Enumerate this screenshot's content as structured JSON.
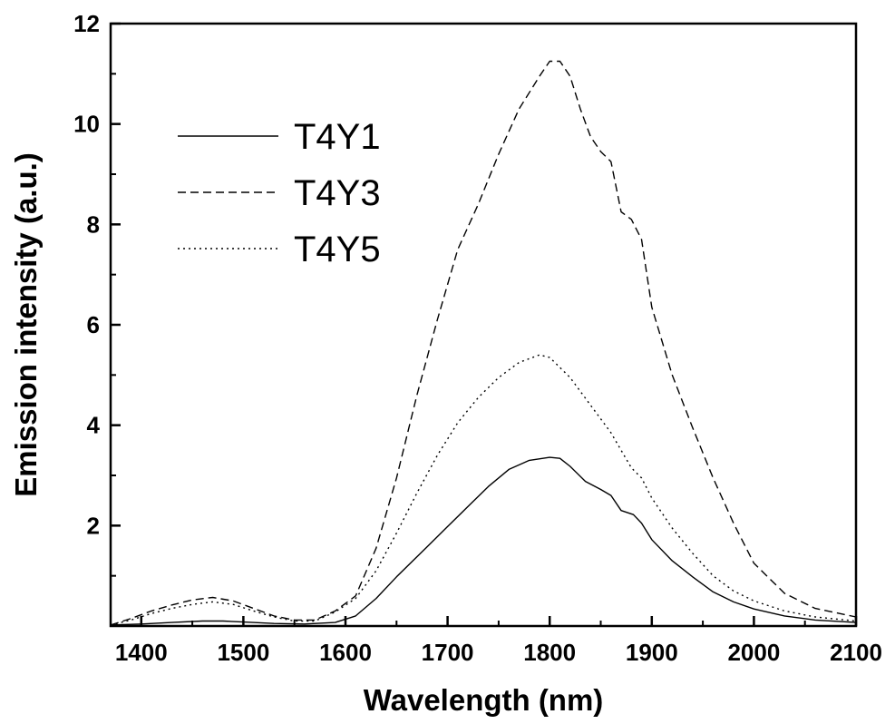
{
  "chart_data": {
    "type": "line",
    "xlabel": "Wavelength (nm)",
    "ylabel": "Emission intensity (a.u.)",
    "xlim": [
      1370,
      2100
    ],
    "ylim": [
      0,
      12
    ],
    "xticks": [
      1400,
      1500,
      1600,
      1700,
      1800,
      1900,
      2000,
      2100
    ],
    "yticks": [
      2,
      4,
      6,
      8,
      10,
      12
    ],
    "grid": false,
    "legend_position": "top-left",
    "series": [
      {
        "name": "T4Y1",
        "line_style": "solid",
        "points": [
          [
            1370,
            0.02
          ],
          [
            1400,
            0.04
          ],
          [
            1430,
            0.07
          ],
          [
            1460,
            0.1
          ],
          [
            1480,
            0.1
          ],
          [
            1500,
            0.08
          ],
          [
            1530,
            0.05
          ],
          [
            1560,
            0.04
          ],
          [
            1590,
            0.07
          ],
          [
            1610,
            0.2
          ],
          [
            1630,
            0.55
          ],
          [
            1650,
            0.98
          ],
          [
            1680,
            1.58
          ],
          [
            1700,
            1.98
          ],
          [
            1720,
            2.38
          ],
          [
            1740,
            2.78
          ],
          [
            1760,
            3.12
          ],
          [
            1780,
            3.3
          ],
          [
            1800,
            3.36
          ],
          [
            1810,
            3.34
          ],
          [
            1820,
            3.18
          ],
          [
            1835,
            2.88
          ],
          [
            1850,
            2.72
          ],
          [
            1860,
            2.6
          ],
          [
            1870,
            2.3
          ],
          [
            1882,
            2.22
          ],
          [
            1890,
            2.05
          ],
          [
            1900,
            1.72
          ],
          [
            1920,
            1.3
          ],
          [
            1940,
            0.98
          ],
          [
            1960,
            0.68
          ],
          [
            1980,
            0.48
          ],
          [
            2000,
            0.34
          ],
          [
            2030,
            0.2
          ],
          [
            2060,
            0.12
          ],
          [
            2100,
            0.07
          ]
        ]
      },
      {
        "name": "T4Y3",
        "line_style": "dashed",
        "points": [
          [
            1370,
            0.02
          ],
          [
            1390,
            0.15
          ],
          [
            1410,
            0.3
          ],
          [
            1430,
            0.42
          ],
          [
            1450,
            0.52
          ],
          [
            1470,
            0.57
          ],
          [
            1490,
            0.5
          ],
          [
            1510,
            0.35
          ],
          [
            1530,
            0.2
          ],
          [
            1550,
            0.12
          ],
          [
            1570,
            0.12
          ],
          [
            1590,
            0.3
          ],
          [
            1610,
            0.6
          ],
          [
            1630,
            1.55
          ],
          [
            1650,
            2.95
          ],
          [
            1670,
            4.6
          ],
          [
            1690,
            6.1
          ],
          [
            1710,
            7.5
          ],
          [
            1730,
            8.4
          ],
          [
            1750,
            9.4
          ],
          [
            1770,
            10.3
          ],
          [
            1790,
            10.95
          ],
          [
            1800,
            11.25
          ],
          [
            1810,
            11.25
          ],
          [
            1820,
            10.95
          ],
          [
            1830,
            10.3
          ],
          [
            1840,
            9.75
          ],
          [
            1850,
            9.45
          ],
          [
            1860,
            9.25
          ],
          [
            1870,
            8.25
          ],
          [
            1880,
            8.1
          ],
          [
            1890,
            7.7
          ],
          [
            1900,
            6.35
          ],
          [
            1920,
            5.0
          ],
          [
            1940,
            3.95
          ],
          [
            1960,
            2.95
          ],
          [
            1980,
            2.05
          ],
          [
            2000,
            1.25
          ],
          [
            2030,
            0.65
          ],
          [
            2060,
            0.35
          ],
          [
            2100,
            0.18
          ]
        ]
      },
      {
        "name": "T4Y5",
        "line_style": "dotted",
        "points": [
          [
            1370,
            0.02
          ],
          [
            1390,
            0.12
          ],
          [
            1410,
            0.25
          ],
          [
            1430,
            0.35
          ],
          [
            1450,
            0.43
          ],
          [
            1470,
            0.48
          ],
          [
            1490,
            0.43
          ],
          [
            1510,
            0.3
          ],
          [
            1530,
            0.18
          ],
          [
            1550,
            0.1
          ],
          [
            1570,
            0.1
          ],
          [
            1590,
            0.28
          ],
          [
            1610,
            0.55
          ],
          [
            1630,
            1.1
          ],
          [
            1650,
            1.85
          ],
          [
            1670,
            2.65
          ],
          [
            1690,
            3.4
          ],
          [
            1710,
            4.05
          ],
          [
            1730,
            4.55
          ],
          [
            1750,
            4.95
          ],
          [
            1770,
            5.25
          ],
          [
            1790,
            5.4
          ],
          [
            1800,
            5.35
          ],
          [
            1820,
            4.95
          ],
          [
            1840,
            4.4
          ],
          [
            1860,
            3.85
          ],
          [
            1870,
            3.5
          ],
          [
            1880,
            3.15
          ],
          [
            1890,
            2.95
          ],
          [
            1900,
            2.55
          ],
          [
            1920,
            1.95
          ],
          [
            1940,
            1.45
          ],
          [
            1960,
            1.0
          ],
          [
            1980,
            0.7
          ],
          [
            2000,
            0.5
          ],
          [
            2030,
            0.3
          ],
          [
            2060,
            0.18
          ],
          [
            2100,
            0.1
          ]
        ]
      }
    ]
  },
  "colors": {
    "line": "#000000",
    "background": "#ffffff"
  }
}
